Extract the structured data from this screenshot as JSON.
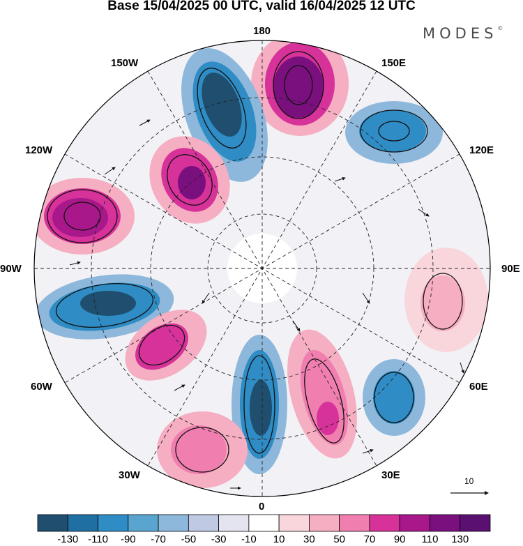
{
  "title": "Base 15/04/2025 00 UTC, valid 16/04/2025 12 UTC",
  "brand": "MODES",
  "brand_mark": "©",
  "longitude_labels": {
    "lon_180": "180",
    "lon_150e": "150E",
    "lon_120e": "120E",
    "lon_90e": "90E",
    "lon_60e": "60E",
    "lon_30e": "30E",
    "lon_0": "0",
    "lon_30w": "30W",
    "lon_60w": "60W",
    "lon_90w": "90W",
    "lon_120w": "120W",
    "lon_150w": "150W"
  },
  "colorbar": {
    "labels": [
      "-130",
      "-110",
      "-90",
      "-70",
      "-50",
      "-30",
      "-10",
      "10",
      "30",
      "50",
      "70",
      "90",
      "110",
      "130"
    ],
    "colors": [
      "#1f4e6e",
      "#1f6fa3",
      "#2f8cc4",
      "#5aa4d0",
      "#8db8dc",
      "#c0c9e3",
      "#e4e4f0",
      "#ffffff",
      "#f9d6dc",
      "#f5aec2",
      "#f07fb0",
      "#d6329a",
      "#a8188a",
      "#7a0f7e",
      "#5a1070"
    ]
  },
  "vector_reference": {
    "value": "10"
  },
  "field_colors": {
    "strong_negative": "#1f4e6e",
    "negative": "#2f8cc4",
    "weak_negative": "#8db8dc",
    "near_zero": "#e4e4f0",
    "weak_positive": "#f9d6dc",
    "positive": "#f07fb0",
    "strong_positive": "#a8188a",
    "extreme_positive": "#6a1070",
    "land_mask": "#e6e6e6",
    "background": "#ffffff"
  }
}
